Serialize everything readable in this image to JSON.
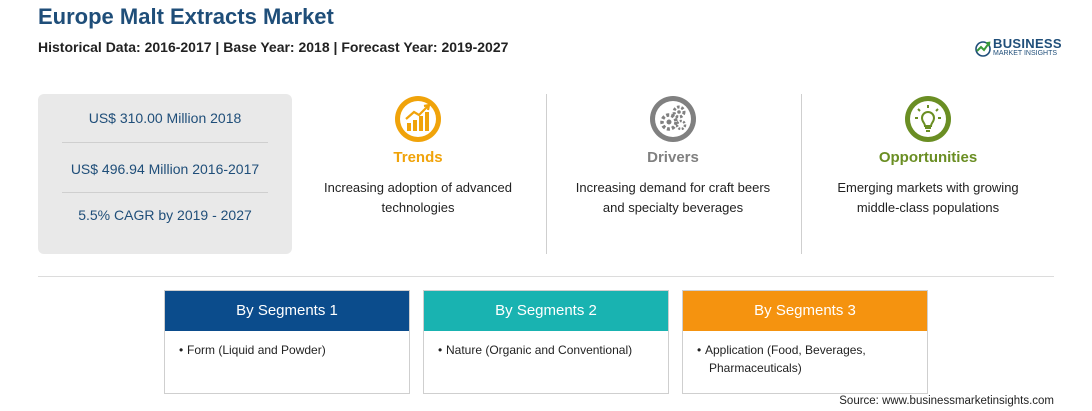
{
  "header": {
    "title": "Europe Malt Extracts Market",
    "subtitle": "Historical Data: 2016-2017 | Base Year: 2018 | Forecast Year: 2019-2027"
  },
  "logo": {
    "word": "BUSINESS",
    "sub": "MARKET INSIGHTS"
  },
  "stats": [
    "US$ 310.00 Million 2018",
    "US$ 496.94 Million 2016-2017",
    "5.5% CAGR by 2019 - 2027"
  ],
  "features": [
    {
      "label": "Trends",
      "text": [
        "Increasing adoption of advanced",
        "technologies"
      ],
      "color": "#f0a30a",
      "icon": "growth-chart-icon"
    },
    {
      "label": "Drivers",
      "text": [
        "Increasing demand for craft beers",
        "and specialty beverages"
      ],
      "color": "#808080",
      "icon": "gears-icon"
    },
    {
      "label": "Opportunities",
      "text": [
        "Emerging markets with growing",
        "middle-class populations"
      ],
      "color": "#6a8e23",
      "icon": "lightbulb-icon"
    }
  ],
  "segments": [
    {
      "title": "By Segments 1",
      "color": "#0b4c8c",
      "items": [
        "Form (Liquid and Powder)"
      ]
    },
    {
      "title": "By Segments 2",
      "color": "#19b3b1",
      "items": [
        "Nature (Organic and Conventional)"
      ]
    },
    {
      "title": "By Segments 3",
      "color": "#f5930f",
      "items": [
        "Application (Food, Beverages,",
        "Pharmaceuticals)"
      ]
    }
  ],
  "source": "Source: www.businessmarketinsights.com"
}
